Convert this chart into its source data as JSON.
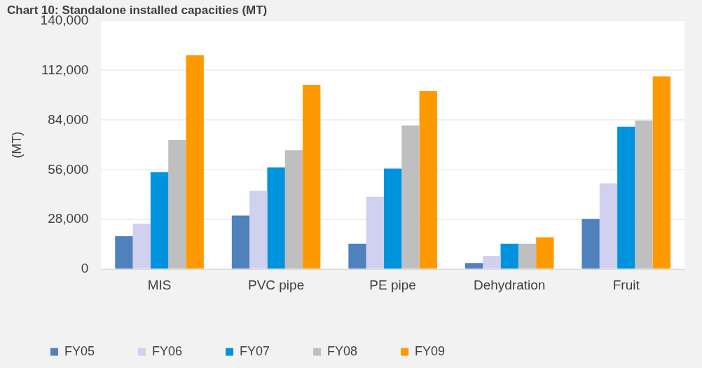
{
  "chart_data": {
    "type": "bar",
    "title": "Chart 10: Standalone installed capacities (MT)",
    "ylabel": "(MT)",
    "categories": [
      "MIS",
      "PVC pipe",
      "PE pipe",
      "Dehydration",
      "Fruit"
    ],
    "series": [
      {
        "name": "FY05",
        "color": "#4f81bd",
        "values": [
          18600,
          30300,
          14400,
          3500,
          28400
        ]
      },
      {
        "name": "FY06",
        "color": "#d0d0ef",
        "values": [
          25600,
          44300,
          40800,
          7600,
          48400
        ]
      },
      {
        "name": "FY07",
        "color": "#0093dd",
        "values": [
          54700,
          57400,
          56700,
          14400,
          80300
        ]
      },
      {
        "name": "FY08",
        "color": "#bfbfbf",
        "values": [
          72700,
          67100,
          81000,
          14400,
          83700
        ]
      },
      {
        "name": "FY09",
        "color": "#ff9900",
        "values": [
          120500,
          103900,
          100300,
          18000,
          108600
        ]
      }
    ],
    "ylim": [
      0,
      140000
    ],
    "yticks": [
      {
        "value": 0,
        "label": "0"
      },
      {
        "value": 28000,
        "label": "28,000"
      },
      {
        "value": 56000,
        "label": "56,000"
      },
      {
        "value": 84000,
        "label": "84,000"
      },
      {
        "value": 112000,
        "label": "112,000"
      },
      {
        "value": 140000,
        "label": "140,000"
      }
    ],
    "grid": "y",
    "legend": "bottom"
  }
}
